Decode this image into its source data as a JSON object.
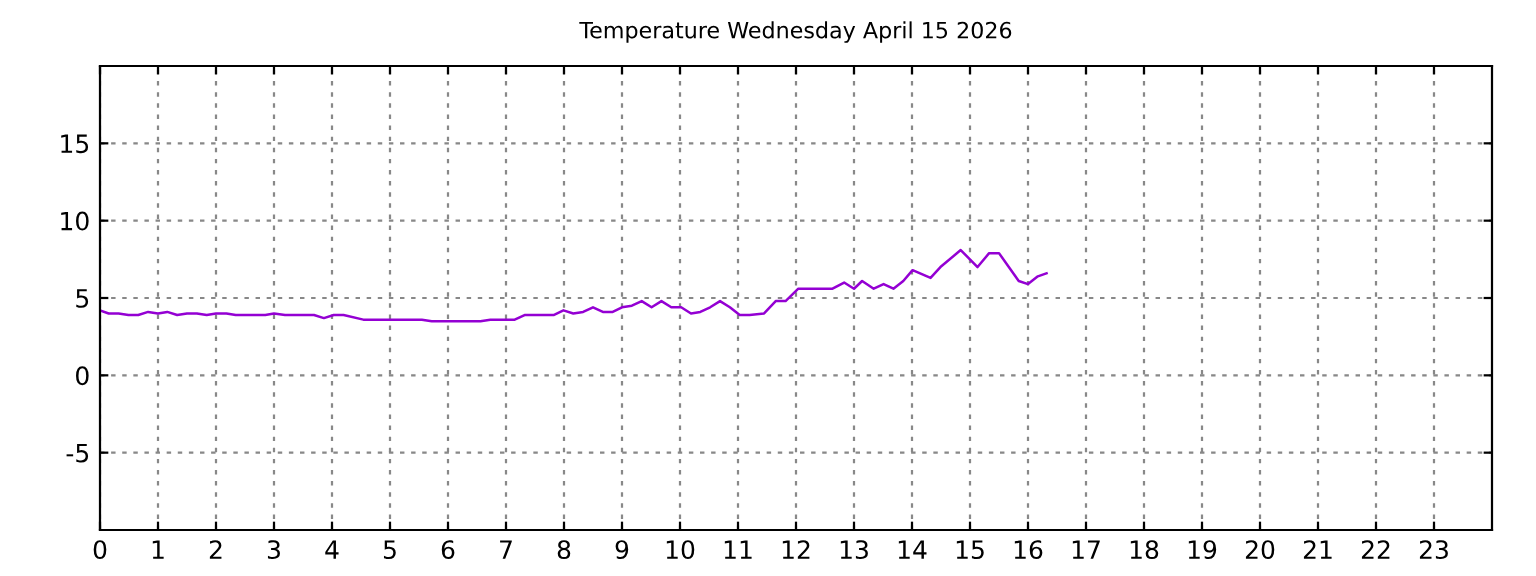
{
  "chart_data": {
    "type": "line",
    "title": "Temperature Wednesday April 15 2026",
    "x": [
      0,
      0.15,
      0.32,
      0.49,
      0.66,
      0.83,
      1.0,
      1.16,
      1.33,
      1.5,
      1.67,
      1.84,
      2.0,
      2.18,
      2.34,
      2.85,
      3.0,
      3.19,
      3.69,
      3.86,
      4.03,
      4.2,
      4.54,
      5.55,
      5.72,
      6.56,
      6.73,
      7.15,
      7.32,
      7.82,
      7.99,
      8.16,
      8.33,
      8.5,
      8.67,
      8.84,
      9.0,
      9.17,
      9.34,
      9.51,
      9.68,
      9.85,
      10.02,
      10.19,
      10.35,
      10.52,
      10.69,
      10.86,
      11.03,
      11.2,
      11.45,
      11.65,
      11.82,
      12.04,
      12.63,
      12.83,
      13.0,
      13.14,
      13.34,
      13.51,
      13.68,
      13.85,
      14.01,
      14.32,
      14.49,
      14.84,
      15.13,
      15.33,
      15.5,
      15.84,
      16.0,
      16.17,
      16.32
    ],
    "series": [
      {
        "color": "#9400d3",
        "values": [
          4.2,
          4.0,
          4.0,
          3.9,
          3.9,
          4.1,
          4.0,
          4.1,
          3.9,
          4.0,
          4.0,
          3.9,
          4.0,
          4.0,
          3.9,
          3.9,
          4.0,
          3.9,
          3.9,
          3.7,
          3.9,
          3.9,
          3.6,
          3.6,
          3.5,
          3.5,
          3.6,
          3.6,
          3.9,
          3.9,
          4.2,
          4.0,
          4.1,
          4.4,
          4.1,
          4.1,
          4.4,
          4.5,
          4.8,
          4.4,
          4.8,
          4.4,
          4.4,
          4.0,
          4.1,
          4.4,
          4.8,
          4.4,
          3.9,
          3.9,
          4.0,
          4.8,
          4.8,
          5.6,
          5.6,
          6.0,
          5.6,
          6.1,
          5.6,
          5.9,
          5.6,
          6.1,
          6.8,
          6.3,
          7.0,
          8.1,
          7.0,
          7.9,
          7.9,
          6.1,
          5.9,
          6.4,
          6.6
        ]
      }
    ],
    "xlim": [
      0,
      24
    ],
    "xticks": [
      0,
      1,
      2,
      3,
      4,
      5,
      6,
      7,
      8,
      9,
      10,
      11,
      12,
      13,
      14,
      15,
      16,
      17,
      18,
      19,
      20,
      21,
      22,
      23
    ],
    "ylim": [
      -10,
      20
    ],
    "yticks": [
      -5,
      0,
      5,
      10,
      15
    ],
    "grid": true,
    "marker": "none",
    "line_style": "solid",
    "legend": false
  }
}
